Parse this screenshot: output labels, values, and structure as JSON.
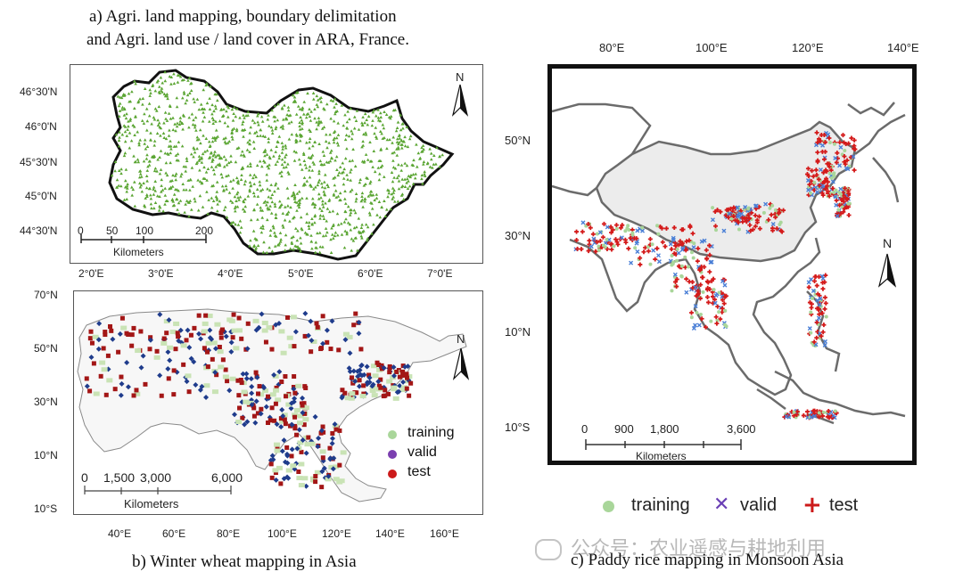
{
  "panel_a": {
    "caption_line1": "a)    Agri. land mapping, boundary delimitation",
    "caption_line2": "and Agri. land use / land cover in ARA, France.",
    "lat_ticks": [
      "46°30'N",
      "46°0'N",
      "45°30'N",
      "45°0'N",
      "44°30'N"
    ],
    "lon_ticks": [
      "2°0'E",
      "3°0'E",
      "4°0'E",
      "5°0'E",
      "6°0'E",
      "7°0'E"
    ],
    "scale_numbers": [
      "0",
      "50",
      "100",
      "200"
    ],
    "scale_unit": "Kilometers",
    "north": "N",
    "point_color": "#5aa532"
  },
  "panel_b": {
    "caption": "b) Winter wheat mapping in Asia",
    "lat_ticks": [
      "70°N",
      "50°N",
      "30°N",
      "10°N",
      "10°S"
    ],
    "lon_ticks": [
      "40°E",
      "60°E",
      "80°E",
      "100°E",
      "120°E",
      "140°E",
      "160°E"
    ],
    "scale_numbers": [
      "0",
      "1,500",
      "3,000",
      "6,000"
    ],
    "scale_unit": "Kilometers",
    "north": "N",
    "legend": [
      {
        "label": "training",
        "color": "#a9d69a"
      },
      {
        "label": "valid",
        "color": "#7b3fb0"
      },
      {
        "label": "test",
        "color": "#cc1a1a"
      }
    ],
    "series_colors": {
      "training": "#c9e3b5",
      "valid": "#1f3c8c",
      "test": "#a31616"
    }
  },
  "panel_c": {
    "caption": "c) Paddy rice mapping in Monsoon Asia",
    "lat_ticks": [
      "50°N",
      "30°N",
      "10°N",
      "10°S"
    ],
    "lon_ticks": [
      "80°E",
      "100°E",
      "120°E",
      "140°E"
    ],
    "scale_numbers": [
      "0",
      "900",
      "1,800",
      "3,600"
    ],
    "scale_unit": "Kilometers",
    "north": "N",
    "legend": [
      {
        "label": "training",
        "symbol": "circle",
        "color": "#a9d69a"
      },
      {
        "label": "valid",
        "symbol": "cross-x",
        "color": "#6a3fb5"
      },
      {
        "label": "test",
        "symbol": "plus",
        "color": "#cc1a1a"
      }
    ],
    "series_colors": {
      "training": "#a9d69a",
      "valid": "#4a7fd6",
      "test": "#d41a1a"
    }
  },
  "watermark": {
    "text": "公众号：农业遥感与耕地利用"
  }
}
